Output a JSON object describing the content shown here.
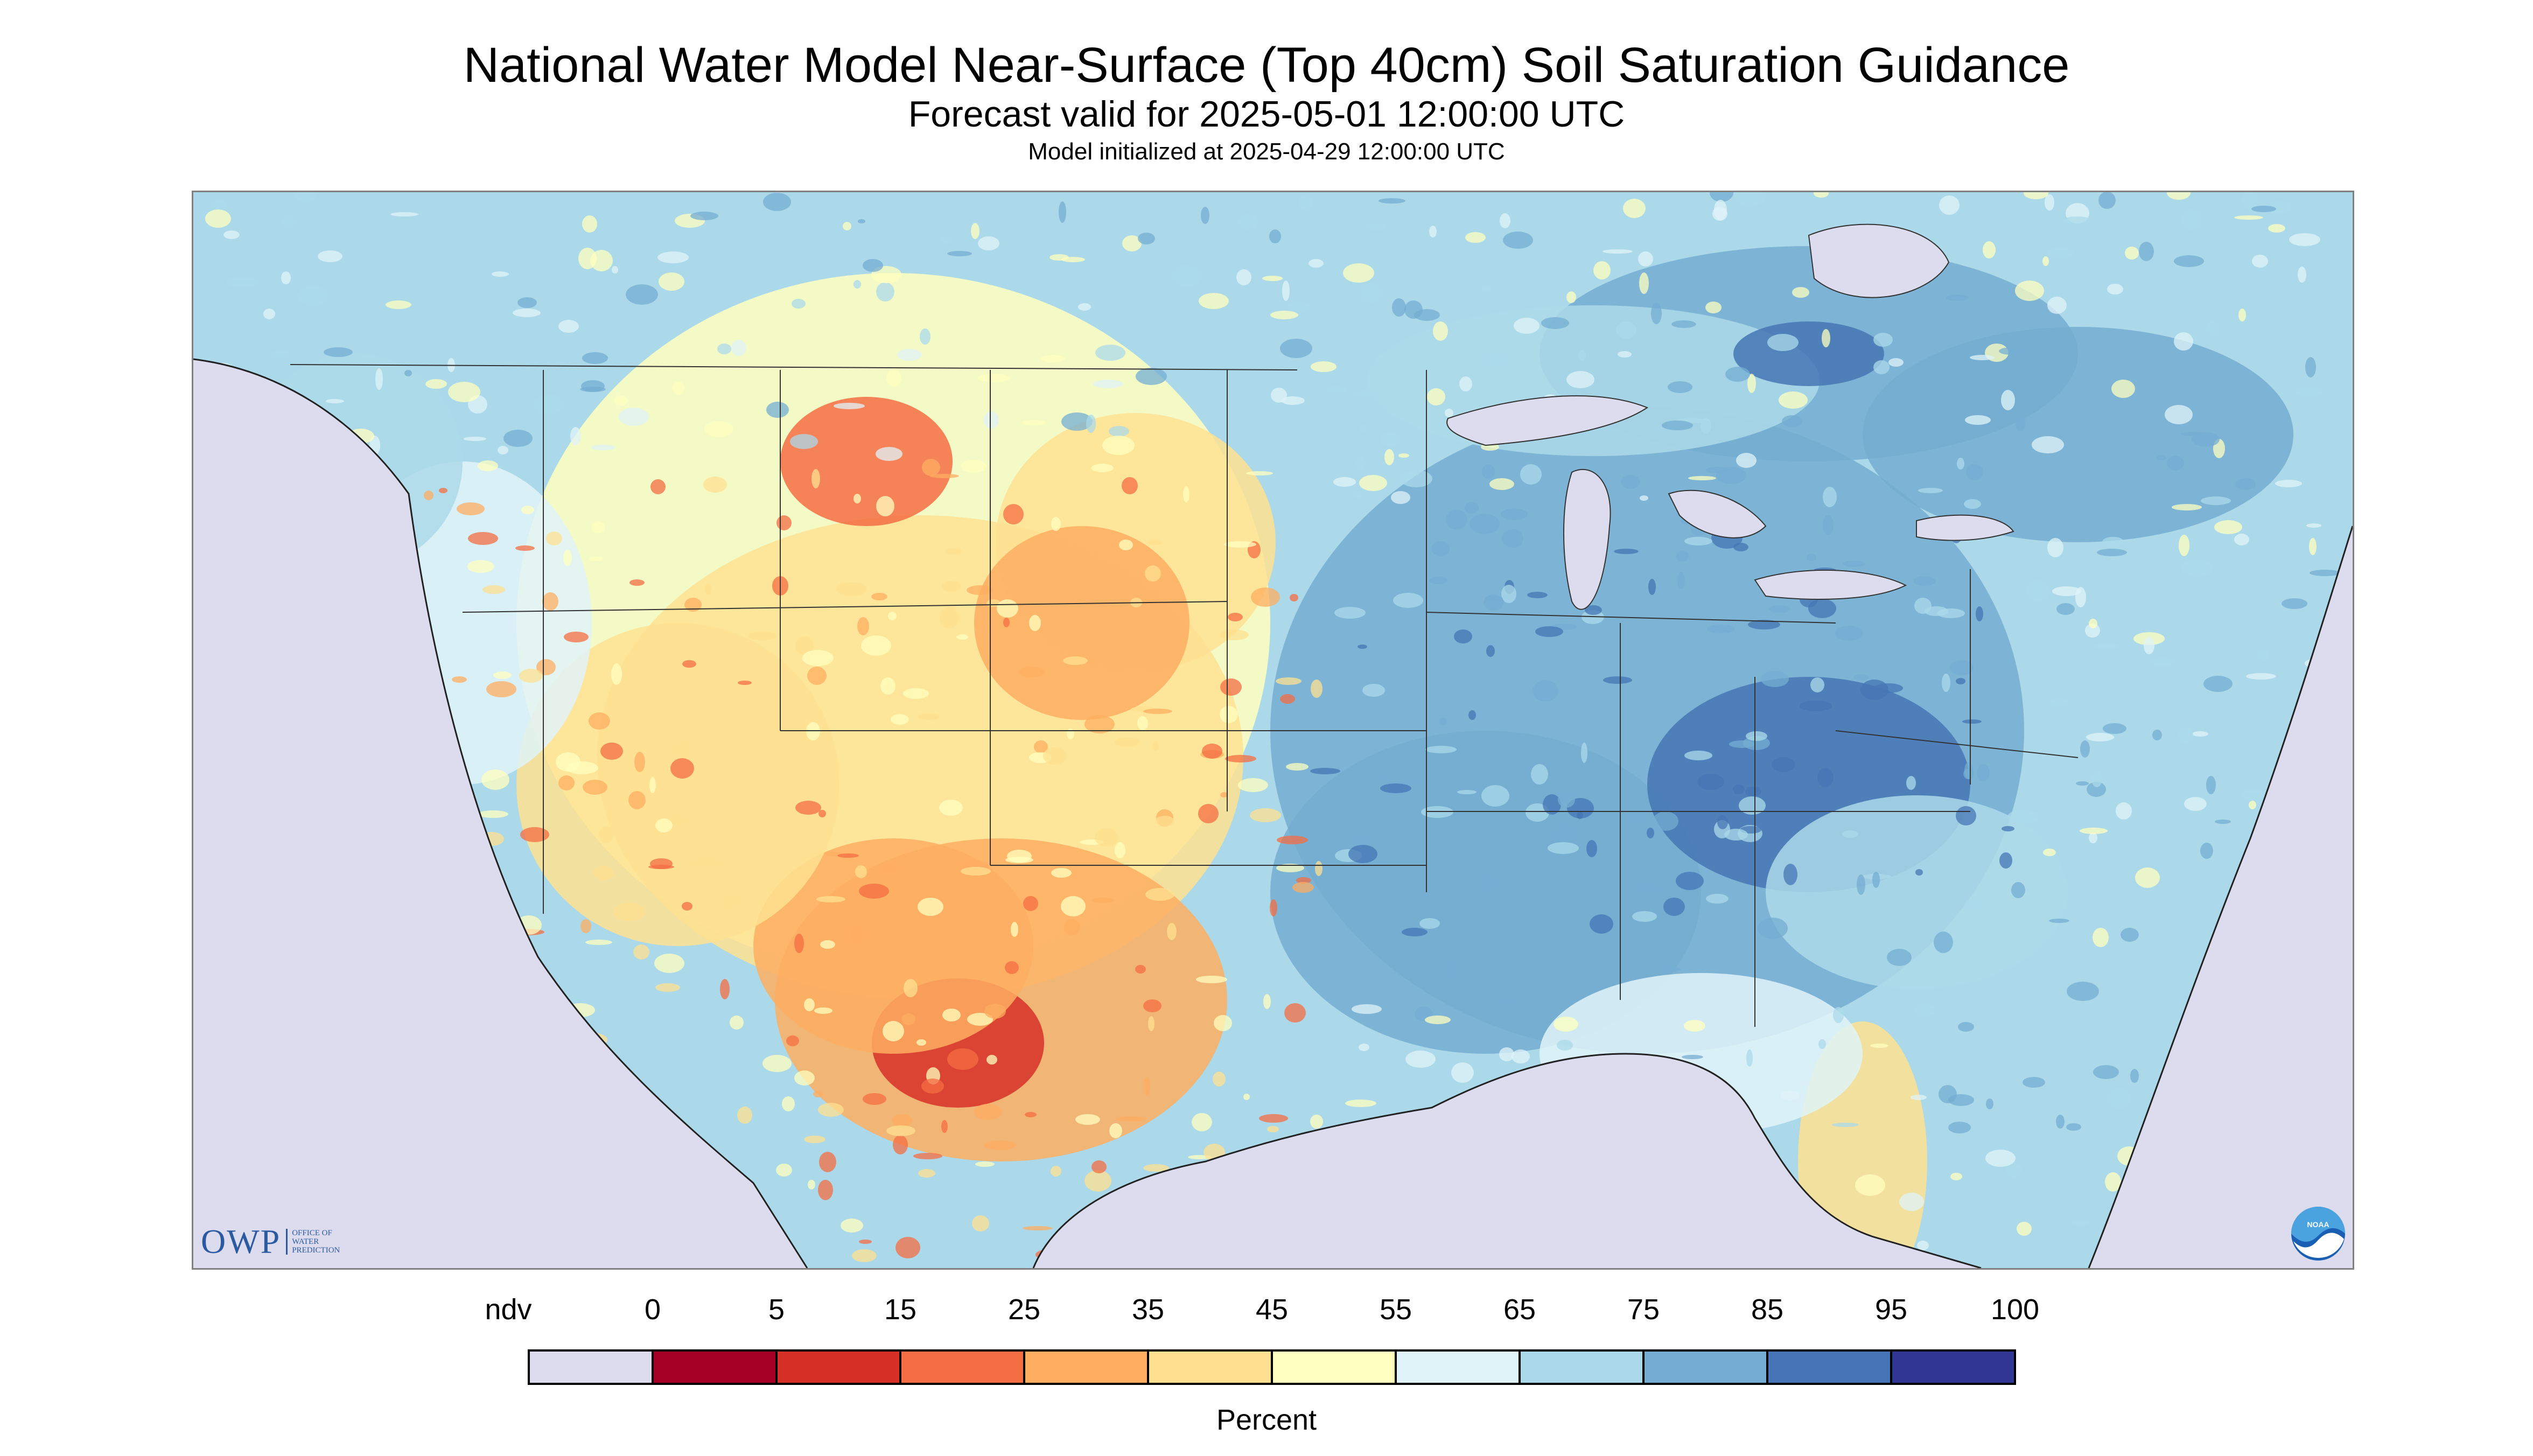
{
  "title": "National Water Model Near-Surface (Top 40cm) Soil Saturation Guidance",
  "subtitle": "Forecast valid for 2025-05-01 12:00:00 UTC",
  "init_line": "Model initialized at 2025-04-29 12:00:00 UTC",
  "logos": {
    "owp_mark": "OWP",
    "owp_name": [
      "OFFICE OF",
      "WATER",
      "PREDICTION"
    ],
    "noaa_mark": "NOAA"
  },
  "map": {
    "region": "CONUS",
    "background_color": "#dcdcee",
    "boundary_color": "#333333"
  },
  "legend": {
    "units": "Percent",
    "tick_labels": [
      "ndv",
      "0",
      "5",
      "15",
      "25",
      "35",
      "45",
      "55",
      "65",
      "75",
      "85",
      "95",
      "100"
    ],
    "colors": [
      "#dcdcee",
      "#a50026",
      "#d73027",
      "#f46d43",
      "#fdae61",
      "#fee090",
      "#ffffbf",
      "#e0f3f8",
      "#abd9e9",
      "#74add1",
      "#4575b4",
      "#313695"
    ]
  }
}
